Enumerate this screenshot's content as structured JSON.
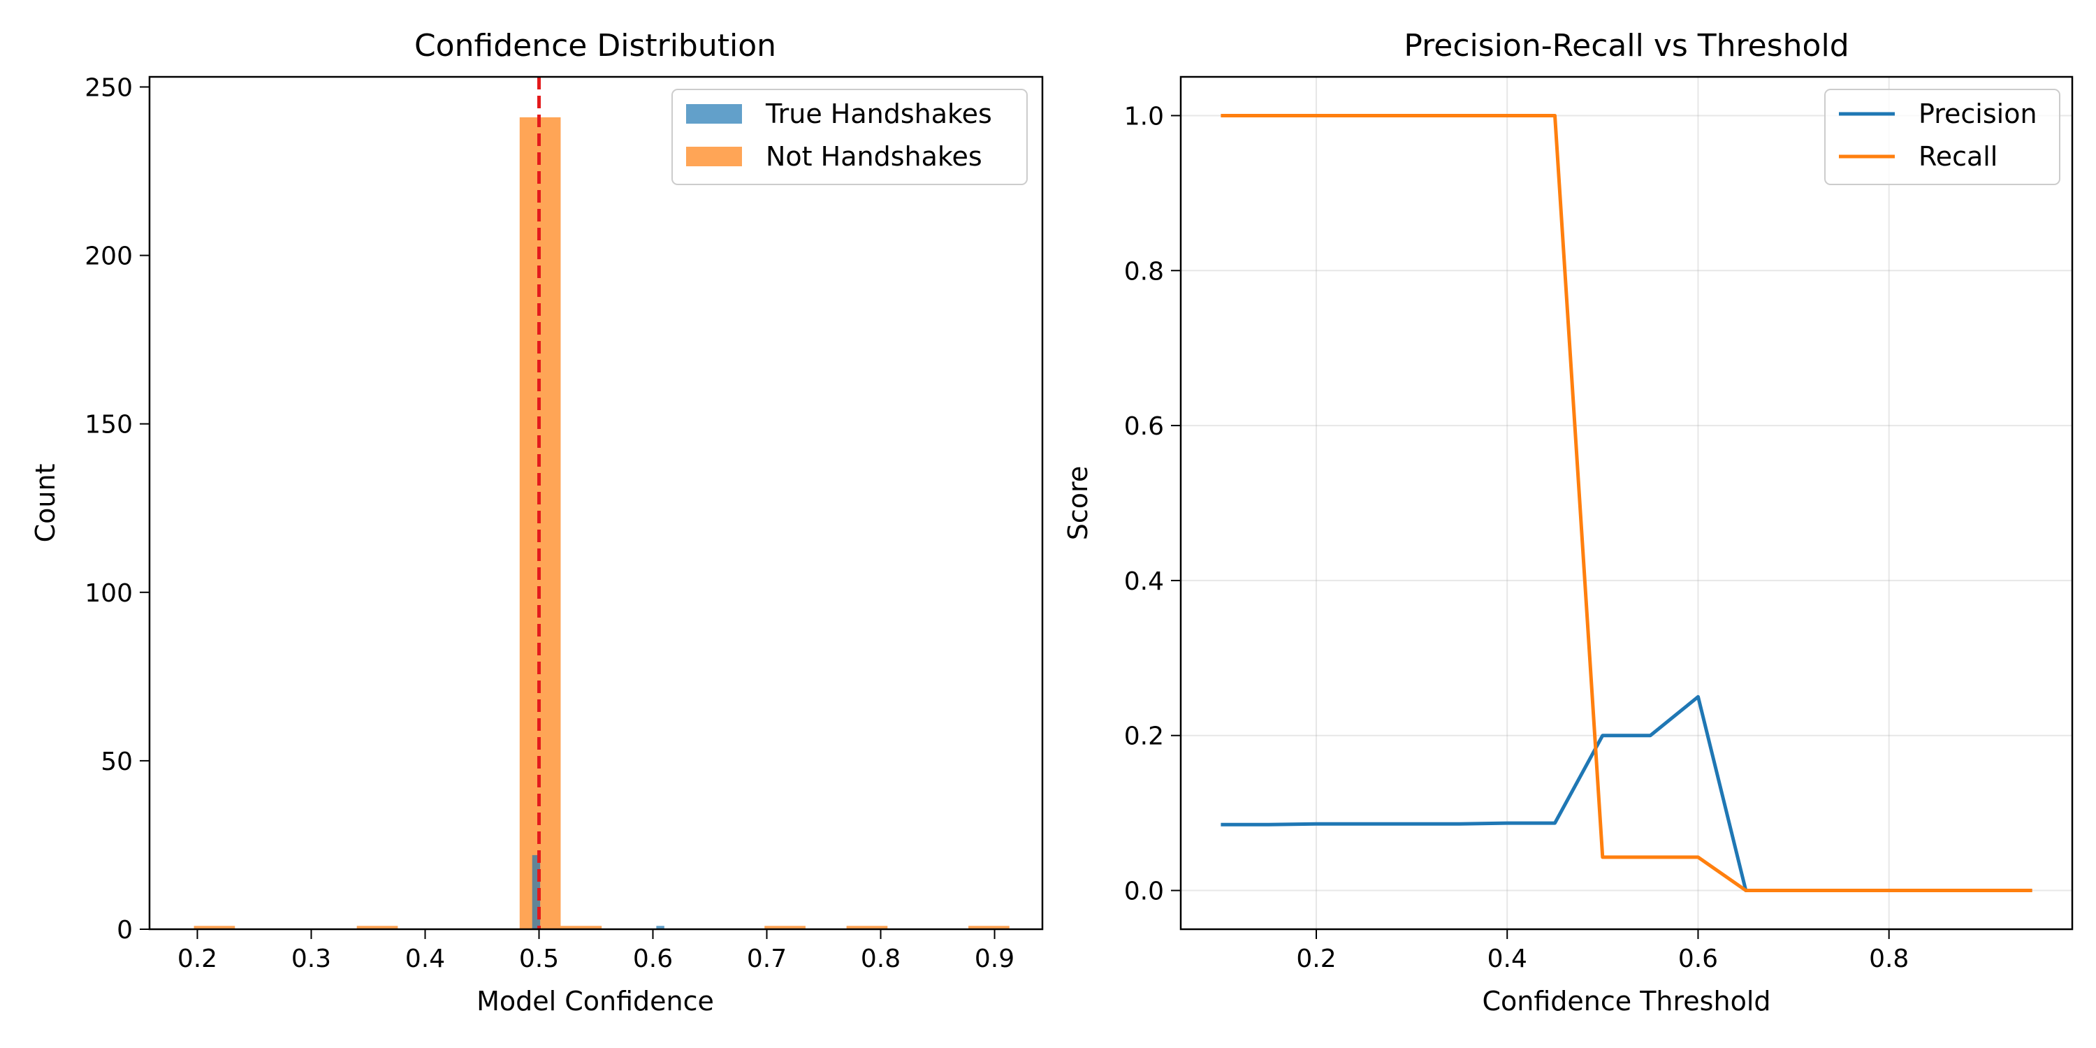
{
  "chart_data": [
    {
      "type": "bar",
      "title": "Confidence Distribution",
      "xlabel": "Model Confidence",
      "ylabel": "Count",
      "xlim": [
        0.158,
        0.942
      ],
      "ylim": [
        0,
        253
      ],
      "xticks": [
        0.2,
        0.3,
        0.4,
        0.5,
        0.6,
        0.7,
        0.8,
        0.9
      ],
      "xtick_labels": [
        "0.2",
        "0.3",
        "0.4",
        "0.5",
        "0.6",
        "0.7",
        "0.8",
        "0.9"
      ],
      "yticks": [
        0,
        50,
        100,
        150,
        200,
        250
      ],
      "ytick_labels": [
        "0",
        "50",
        "100",
        "150",
        "200",
        "250"
      ],
      "grid": false,
      "legend_position": "top-right",
      "threshold_line": {
        "x": 0.5,
        "color": "#e31a1c",
        "style": "dashed"
      },
      "series": [
        {
          "name": "True Handshakes",
          "color": "#1f77b4",
          "opacity": 0.7,
          "bins": [
            {
              "x0": 0.494,
              "x1": 0.501,
              "value": 22
            },
            {
              "x0": 0.603,
              "x1": 0.61,
              "value": 1
            }
          ]
        },
        {
          "name": "Not Handshakes",
          "color": "#ff7f0e",
          "opacity": 0.7,
          "bins": [
            {
              "x0": 0.197,
              "x1": 0.233,
              "value": 1
            },
            {
              "x0": 0.34,
              "x1": 0.376,
              "value": 1
            },
            {
              "x0": 0.483,
              "x1": 0.519,
              "value": 241
            },
            {
              "x0": 0.519,
              "x1": 0.555,
              "value": 1
            },
            {
              "x0": 0.698,
              "x1": 0.734,
              "value": 1
            },
            {
              "x0": 0.77,
              "x1": 0.806,
              "value": 1
            },
            {
              "x0": 0.877,
              "x1": 0.913,
              "value": 1
            }
          ]
        }
      ]
    },
    {
      "type": "line",
      "title": "Precision-Recall vs Threshold",
      "xlabel": "Confidence Threshold",
      "ylabel": "Score",
      "xlim": [
        0.058,
        0.992
      ],
      "ylim": [
        -0.05,
        1.05
      ],
      "xticks": [
        0.2,
        0.4,
        0.6,
        0.8
      ],
      "xtick_labels": [
        "0.2",
        "0.4",
        "0.6",
        "0.8"
      ],
      "yticks": [
        0.0,
        0.2,
        0.4,
        0.6,
        0.8,
        1.0
      ],
      "ytick_labels": [
        "0.0",
        "0.2",
        "0.4",
        "0.6",
        "0.8",
        "1.0"
      ],
      "grid": true,
      "legend_position": "top-right",
      "x": [
        0.1,
        0.15,
        0.2,
        0.25,
        0.3,
        0.35,
        0.4,
        0.45,
        0.5,
        0.55,
        0.6,
        0.65,
        0.7,
        0.75,
        0.8,
        0.85,
        0.9,
        0.95
      ],
      "series": [
        {
          "name": "Precision",
          "color": "#1f77b4",
          "values": [
            0.085,
            0.085,
            0.086,
            0.086,
            0.086,
            0.086,
            0.087,
            0.087,
            0.2,
            0.2,
            0.25,
            0.0,
            0.0,
            0.0,
            0.0,
            0.0,
            0.0,
            0.0
          ]
        },
        {
          "name": "Recall",
          "color": "#ff7f0e",
          "values": [
            1.0,
            1.0,
            1.0,
            1.0,
            1.0,
            1.0,
            1.0,
            1.0,
            0.043,
            0.043,
            0.043,
            0.0,
            0.0,
            0.0,
            0.0,
            0.0,
            0.0,
            0.0
          ]
        }
      ]
    }
  ]
}
